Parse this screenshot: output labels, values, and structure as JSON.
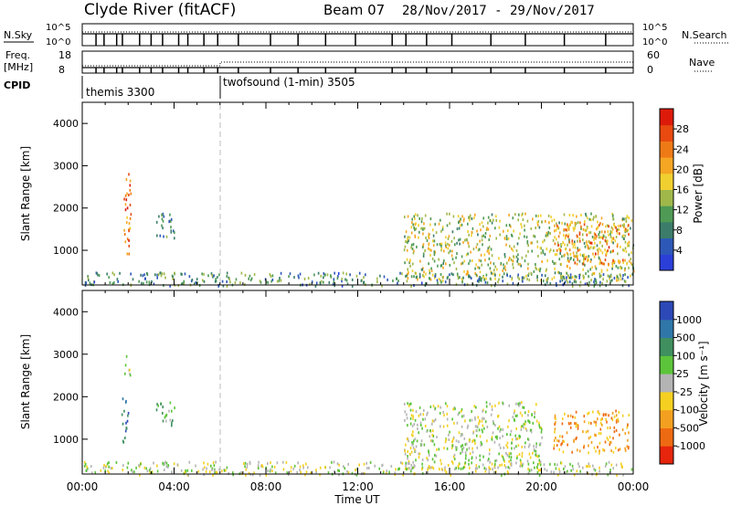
{
  "header": {
    "station": "Clyde River (fitACF)",
    "beam": "Beam 07",
    "dates": "28/Nov/2017 - 29/Nov/2017"
  },
  "top_strip": {
    "nsky_label": "N.Sky",
    "nsearch_label": "N.Search",
    "left_ticks": [
      "10^5",
      "10^0"
    ],
    "right_ticks": [
      "10^5",
      "10^0"
    ],
    "freq_label_1": "Freq.",
    "freq_label_2": "[MHz]",
    "freq_ticks": [
      "18",
      "8"
    ],
    "nave_label": "Nave",
    "nave_ticks": [
      "60",
      "0"
    ],
    "cpid_label": "CPID",
    "cpid_segments": [
      {
        "label": "themis 3300",
        "start_hour": 0,
        "end_hour": 6
      },
      {
        "label": "twofsound (1-min) 3505",
        "start_hour": 6,
        "end_hour": 24
      }
    ]
  },
  "panels": [
    {
      "id": "power",
      "ylabel": "Slant Range [km]",
      "yticks": [
        "4000",
        "3000",
        "2000",
        "1000"
      ],
      "colorbar_label": "Power [dB]",
      "colorbar_ticks": [
        "28",
        "24",
        "20",
        "16",
        "12",
        "8",
        "4"
      ],
      "colors": [
        "#2b3fd8",
        "#2e58b8",
        "#3b7d6a",
        "#4f9a55",
        "#a0b84a",
        "#f0d030",
        "#f5a623",
        "#ee7a16",
        "#e84a10",
        "#dd1a0a"
      ]
    },
    {
      "id": "velocity",
      "ylabel": "Slant Range [km]",
      "yticks": [
        "4000",
        "3000",
        "2000",
        "1000"
      ],
      "colorbar_label": "Velocity [m s⁻¹]",
      "colorbar_ticks": [
        "1000",
        "500",
        "100",
        "25",
        "-25",
        "-100",
        "-500",
        "-1000"
      ],
      "colors": [
        "#2d49b8",
        "#2f77a8",
        "#3f8f5f",
        "#5cc43a",
        "#b4b4b4",
        "#f5d020",
        "#f3a020",
        "#ee6a12",
        "#e6250c"
      ]
    }
  ],
  "xaxis": {
    "label": "Time UT",
    "ticks": [
      "00:00",
      "04:00",
      "08:00",
      "12:00",
      "16:00",
      "20:00",
      "00:00"
    ]
  },
  "chart_data": [
    {
      "type": "heatmap",
      "title": "Power",
      "xlabel": "Time UT",
      "ylabel": "Slant Range [km]",
      "xlim_hours": [
        0,
        24
      ],
      "ylim": [
        180,
        4500
      ],
      "colorbar": {
        "label": "Power [dB]",
        "range": [
          0,
          30
        ]
      },
      "regions": [
        {
          "t0": 1.8,
          "t1": 2.1,
          "r0": 900,
          "r1": 3000,
          "value": 24
        },
        {
          "t0": 3.2,
          "t1": 4.0,
          "r0": 1300,
          "r1": 1900,
          "value": 8
        },
        {
          "t0": 14.0,
          "t1": 24.0,
          "r0": 300,
          "r1": 1900,
          "value": 14
        },
        {
          "t0": 20.5,
          "t1": 23.8,
          "r0": 700,
          "r1": 1700,
          "value": 22
        },
        {
          "t0": 0.0,
          "t1": 24.0,
          "r0": 180,
          "r1": 500,
          "value": 8
        }
      ]
    },
    {
      "type": "heatmap",
      "title": "Velocity",
      "xlabel": "Time UT",
      "ylabel": "Slant Range [km]",
      "xlim_hours": [
        0,
        24
      ],
      "ylim": [
        180,
        4500
      ],
      "colorbar": {
        "label": "Velocity [m s⁻¹]",
        "range": [
          -1000,
          1000
        ]
      },
      "regions": [
        {
          "t0": 1.7,
          "t1": 2.0,
          "r0": 900,
          "r1": 2000,
          "value": 800
        },
        {
          "t0": 1.8,
          "t1": 2.1,
          "r0": 2500,
          "r1": 3000,
          "value": -100
        },
        {
          "t0": 3.2,
          "t1": 4.0,
          "r0": 1300,
          "r1": 1900,
          "value": 150
        },
        {
          "t0": 14.0,
          "t1": 20.0,
          "r0": 300,
          "r1": 1900,
          "value": 100
        },
        {
          "t0": 20.5,
          "t1": 23.8,
          "r0": 700,
          "r1": 1700,
          "value": -400
        },
        {
          "t0": 0.0,
          "t1": 24.0,
          "r0": 180,
          "r1": 500,
          "value": 50
        }
      ]
    }
  ]
}
